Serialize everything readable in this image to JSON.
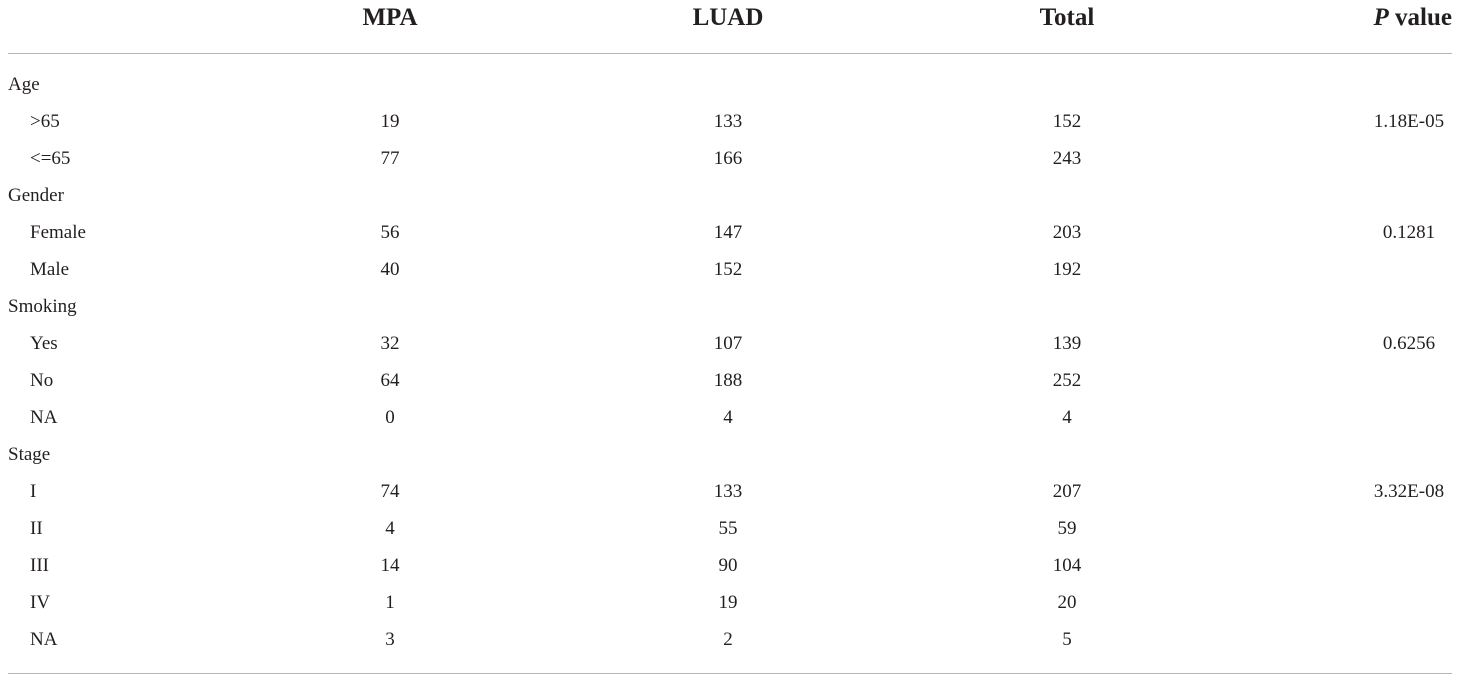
{
  "table": {
    "headers": {
      "mpa": "MPA",
      "luad": "LUAD",
      "total": "Total",
      "p_italic": "P",
      "p_rest": " value"
    },
    "rows": [
      {
        "label": "Age",
        "group": true,
        "mpa": "",
        "luad": "",
        "total": "",
        "p": ""
      },
      {
        "label": ">65",
        "group": false,
        "mpa": "19",
        "luad": "133",
        "total": "152",
        "p": "1.18E-05"
      },
      {
        "label": "<=65",
        "group": false,
        "mpa": "77",
        "luad": "166",
        "total": "243",
        "p": ""
      },
      {
        "label": "Gender",
        "group": true,
        "mpa": "",
        "luad": "",
        "total": "",
        "p": ""
      },
      {
        "label": "Female",
        "group": false,
        "mpa": "56",
        "luad": "147",
        "total": "203",
        "p": "0.1281"
      },
      {
        "label": "Male",
        "group": false,
        "mpa": "40",
        "luad": "152",
        "total": "192",
        "p": ""
      },
      {
        "label": "Smoking",
        "group": true,
        "mpa": "",
        "luad": "",
        "total": "",
        "p": ""
      },
      {
        "label": "Yes",
        "group": false,
        "mpa": "32",
        "luad": "107",
        "total": "139",
        "p": "0.6256"
      },
      {
        "label": "No",
        "group": false,
        "mpa": "64",
        "luad": "188",
        "total": "252",
        "p": ""
      },
      {
        "label": "NA",
        "group": false,
        "mpa": "0",
        "luad": "4",
        "total": "4",
        "p": ""
      },
      {
        "label": "Stage",
        "group": true,
        "mpa": "",
        "luad": "",
        "total": "",
        "p": ""
      },
      {
        "label": "I",
        "group": false,
        "mpa": "74",
        "luad": "133",
        "total": "207",
        "p": "3.32E-08"
      },
      {
        "label": "II",
        "group": false,
        "mpa": "4",
        "luad": "55",
        "total": "59",
        "p": ""
      },
      {
        "label": "III",
        "group": false,
        "mpa": "14",
        "luad": "90",
        "total": "104",
        "p": ""
      },
      {
        "label": "IV",
        "group": false,
        "mpa": "1",
        "luad": "19",
        "total": "20",
        "p": ""
      },
      {
        "label": "NA",
        "group": false,
        "mpa": "3",
        "luad": "2",
        "total": "5",
        "p": ""
      }
    ]
  }
}
